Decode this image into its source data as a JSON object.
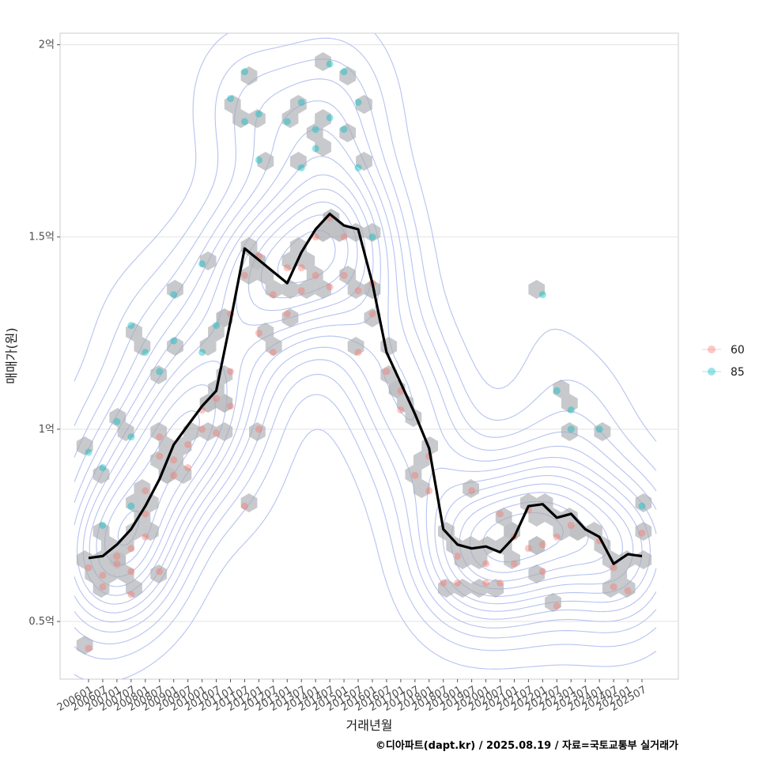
{
  "chart_data": {
    "type": "scatter",
    "title": "",
    "xlabel": "거래년월",
    "ylabel": "매매가(원)",
    "caption": "©디아파트(dapt.kr) / 2025.08.19 / 자료=국토교통부 실거래가",
    "x_ticks": [
      "200601",
      "200607",
      "200701",
      "200707",
      "200801",
      "200807",
      "200901",
      "200907",
      "201001",
      "201007",
      "201101",
      "201107",
      "201201",
      "201207",
      "201301",
      "201307",
      "201401",
      "201407",
      "201501",
      "201507",
      "201601",
      "201607",
      "201701",
      "201707",
      "201801",
      "201807",
      "201901",
      "201907",
      "202001",
      "202007",
      "202101",
      "202107",
      "202201",
      "202207",
      "202301",
      "202307",
      "202401",
      "202407",
      "202501",
      "202507"
    ],
    "y_ticks": [
      {
        "value": 50000000,
        "label": "0.5억"
      },
      {
        "value": 100000000,
        "label": "1억"
      },
      {
        "value": 150000000,
        "label": "1.5억"
      },
      {
        "value": 200000000,
        "label": "2억"
      }
    ],
    "ylim": [
      35000000,
      203000000
    ],
    "grid": true,
    "legend": {
      "position": "right",
      "entries": [
        {
          "name": "60",
          "color": "#F8766D"
        },
        {
          "name": "85",
          "color": "#00BFC4"
        }
      ]
    },
    "colors": {
      "60": "#F8766D",
      "85": "#00BFC4",
      "trend": "#000000",
      "contour": "#a9b8ec",
      "hex": "#a9acb0"
    },
    "trend_line": [
      {
        "x": "200601",
        "y": 66500000
      },
      {
        "x": "200607",
        "y": 67000000
      },
      {
        "x": "200701",
        "y": 70000000
      },
      {
        "x": "200707",
        "y": 74000000
      },
      {
        "x": "200801",
        "y": 80000000
      },
      {
        "x": "200807",
        "y": 87000000
      },
      {
        "x": "200901",
        "y": 96000000
      },
      {
        "x": "200907",
        "y": 101000000
      },
      {
        "x": "201001",
        "y": 106000000
      },
      {
        "x": "201007",
        "y": 110000000
      },
      {
        "x": "201101",
        "y": 128000000
      },
      {
        "x": "201107",
        "y": 147000000
      },
      {
        "x": "201201",
        "y": 144000000
      },
      {
        "x": "201207",
        "y": 141000000
      },
      {
        "x": "201301",
        "y": 138000000
      },
      {
        "x": "201307",
        "y": 146000000
      },
      {
        "x": "201401",
        "y": 152000000
      },
      {
        "x": "201407",
        "y": 156000000
      },
      {
        "x": "201501",
        "y": 153000000
      },
      {
        "x": "201507",
        "y": 152000000
      },
      {
        "x": "201601",
        "y": 138000000
      },
      {
        "x": "201607",
        "y": 120000000
      },
      {
        "x": "201701",
        "y": 112000000
      },
      {
        "x": "201707",
        "y": 104000000
      },
      {
        "x": "201801",
        "y": 95000000
      },
      {
        "x": "201807",
        "y": 74000000
      },
      {
        "x": "201901",
        "y": 70000000
      },
      {
        "x": "201907",
        "y": 69000000
      },
      {
        "x": "202001",
        "y": 69500000
      },
      {
        "x": "202007",
        "y": 68000000
      },
      {
        "x": "202101",
        "y": 72000000
      },
      {
        "x": "202107",
        "y": 80000000
      },
      {
        "x": "202201",
        "y": 80500000
      },
      {
        "x": "202207",
        "y": 77000000
      },
      {
        "x": "202301",
        "y": 78000000
      },
      {
        "x": "202307",
        "y": 74000000
      },
      {
        "x": "202401",
        "y": 72000000
      },
      {
        "x": "202407",
        "y": 65000000
      },
      {
        "x": "202501",
        "y": 67500000
      },
      {
        "x": "202507",
        "y": 67000000
      }
    ],
    "series": [
      {
        "name": "60",
        "points": [
          {
            "x": "200601",
            "y": 43000000
          },
          {
            "x": "200601",
            "y": 64000000
          },
          {
            "x": "200607",
            "y": 59000000
          },
          {
            "x": "200607",
            "y": 62000000
          },
          {
            "x": "200701",
            "y": 65000000
          },
          {
            "x": "200701",
            "y": 67000000
          },
          {
            "x": "200707",
            "y": 57000000
          },
          {
            "x": "200707",
            "y": 69000000
          },
          {
            "x": "200707",
            "y": 63000000
          },
          {
            "x": "200801",
            "y": 72000000
          },
          {
            "x": "200801",
            "y": 78000000
          },
          {
            "x": "200801",
            "y": 84000000
          },
          {
            "x": "200807",
            "y": 63000000
          },
          {
            "x": "200807",
            "y": 93000000
          },
          {
            "x": "200807",
            "y": 98000000
          },
          {
            "x": "200901",
            "y": 88000000
          },
          {
            "x": "200901",
            "y": 92000000
          },
          {
            "x": "200907",
            "y": 96000000
          },
          {
            "x": "200907",
            "y": 90000000
          },
          {
            "x": "201001",
            "y": 100000000
          },
          {
            "x": "201001",
            "y": 105000000
          },
          {
            "x": "201007",
            "y": 99000000
          },
          {
            "x": "201007",
            "y": 108000000
          },
          {
            "x": "201101",
            "y": 106000000
          },
          {
            "x": "201101",
            "y": 115000000
          },
          {
            "x": "201101",
            "y": 130000000
          },
          {
            "x": "201107",
            "y": 80000000
          },
          {
            "x": "201107",
            "y": 140000000
          },
          {
            "x": "201201",
            "y": 125000000
          },
          {
            "x": "201201",
            "y": 145000000
          },
          {
            "x": "201201",
            "y": 100000000
          },
          {
            "x": "201207",
            "y": 135000000
          },
          {
            "x": "201207",
            "y": 120000000
          },
          {
            "x": "201301",
            "y": 130000000
          },
          {
            "x": "201301",
            "y": 142000000
          },
          {
            "x": "201307",
            "y": 136000000
          },
          {
            "x": "201307",
            "y": 142000000
          },
          {
            "x": "201401",
            "y": 140000000
          },
          {
            "x": "201401",
            "y": 150000000
          },
          {
            "x": "201407",
            "y": 137000000
          },
          {
            "x": "201407",
            "y": 155000000
          },
          {
            "x": "201501",
            "y": 140000000
          },
          {
            "x": "201501",
            "y": 150000000
          },
          {
            "x": "201507",
            "y": 120000000
          },
          {
            "x": "201507",
            "y": 136000000
          },
          {
            "x": "201601",
            "y": 130000000
          },
          {
            "x": "201601",
            "y": 138000000
          },
          {
            "x": "201607",
            "y": 115000000
          },
          {
            "x": "201701",
            "y": 110000000
          },
          {
            "x": "201701",
            "y": 105000000
          },
          {
            "x": "201707",
            "y": 88000000
          },
          {
            "x": "201801",
            "y": 93000000
          },
          {
            "x": "201801",
            "y": 84000000
          },
          {
            "x": "201807",
            "y": 60000000
          },
          {
            "x": "201901",
            "y": 60000000
          },
          {
            "x": "201901",
            "y": 67000000
          },
          {
            "x": "201907",
            "y": 84000000
          },
          {
            "x": "202001",
            "y": 60000000
          },
          {
            "x": "202001",
            "y": 65000000
          },
          {
            "x": "202007",
            "y": 60000000
          },
          {
            "x": "202007",
            "y": 78000000
          },
          {
            "x": "202101",
            "y": 65000000
          },
          {
            "x": "202101",
            "y": 72000000
          },
          {
            "x": "202107",
            "y": 69000000
          },
          {
            "x": "202107",
            "y": 79000000
          },
          {
            "x": "202201",
            "y": 63000000
          },
          {
            "x": "202201",
            "y": 70000000
          },
          {
            "x": "202207",
            "y": 54000000
          },
          {
            "x": "202207",
            "y": 72000000
          },
          {
            "x": "202301",
            "y": 75000000
          },
          {
            "x": "202401",
            "y": 71000000
          },
          {
            "x": "202407",
            "y": 59000000
          },
          {
            "x": "202407",
            "y": 64000000
          },
          {
            "x": "202501",
            "y": 58000000
          },
          {
            "x": "202507",
            "y": 73000000
          }
        ]
      },
      {
        "name": "85",
        "points": [
          {
            "x": "200601",
            "y": 94000000
          },
          {
            "x": "200607",
            "y": 90000000
          },
          {
            "x": "200607",
            "y": 75000000
          },
          {
            "x": "200701",
            "y": 102000000
          },
          {
            "x": "200707",
            "y": 98000000
          },
          {
            "x": "200707",
            "y": 80000000
          },
          {
            "x": "200707",
            "y": 127000000
          },
          {
            "x": "200801",
            "y": 120000000
          },
          {
            "x": "200807",
            "y": 115000000
          },
          {
            "x": "200901",
            "y": 123000000
          },
          {
            "x": "200901",
            "y": 135000000
          },
          {
            "x": "201001",
            "y": 143000000
          },
          {
            "x": "201001",
            "y": 120000000
          },
          {
            "x": "201007",
            "y": 127000000
          },
          {
            "x": "201101",
            "y": 186000000
          },
          {
            "x": "201107",
            "y": 193000000
          },
          {
            "x": "201107",
            "y": 180000000
          },
          {
            "x": "201201",
            "y": 182000000
          },
          {
            "x": "201201",
            "y": 170000000
          },
          {
            "x": "201301",
            "y": 180000000
          },
          {
            "x": "201307",
            "y": 168000000
          },
          {
            "x": "201307",
            "y": 185000000
          },
          {
            "x": "201401",
            "y": 178000000
          },
          {
            "x": "201401",
            "y": 173000000
          },
          {
            "x": "201407",
            "y": 181000000
          },
          {
            "x": "201407",
            "y": 195000000
          },
          {
            "x": "201501",
            "y": 193000000
          },
          {
            "x": "201501",
            "y": 178000000
          },
          {
            "x": "201507",
            "y": 185000000
          },
          {
            "x": "201507",
            "y": 168000000
          },
          {
            "x": "201601",
            "y": 150000000
          },
          {
            "x": "202201",
            "y": 135000000
          },
          {
            "x": "202207",
            "y": 110000000
          },
          {
            "x": "202301",
            "y": 105000000
          },
          {
            "x": "202301",
            "y": 100000000
          },
          {
            "x": "202401",
            "y": 100000000
          },
          {
            "x": "202507",
            "y": 80000000
          }
        ]
      }
    ]
  }
}
